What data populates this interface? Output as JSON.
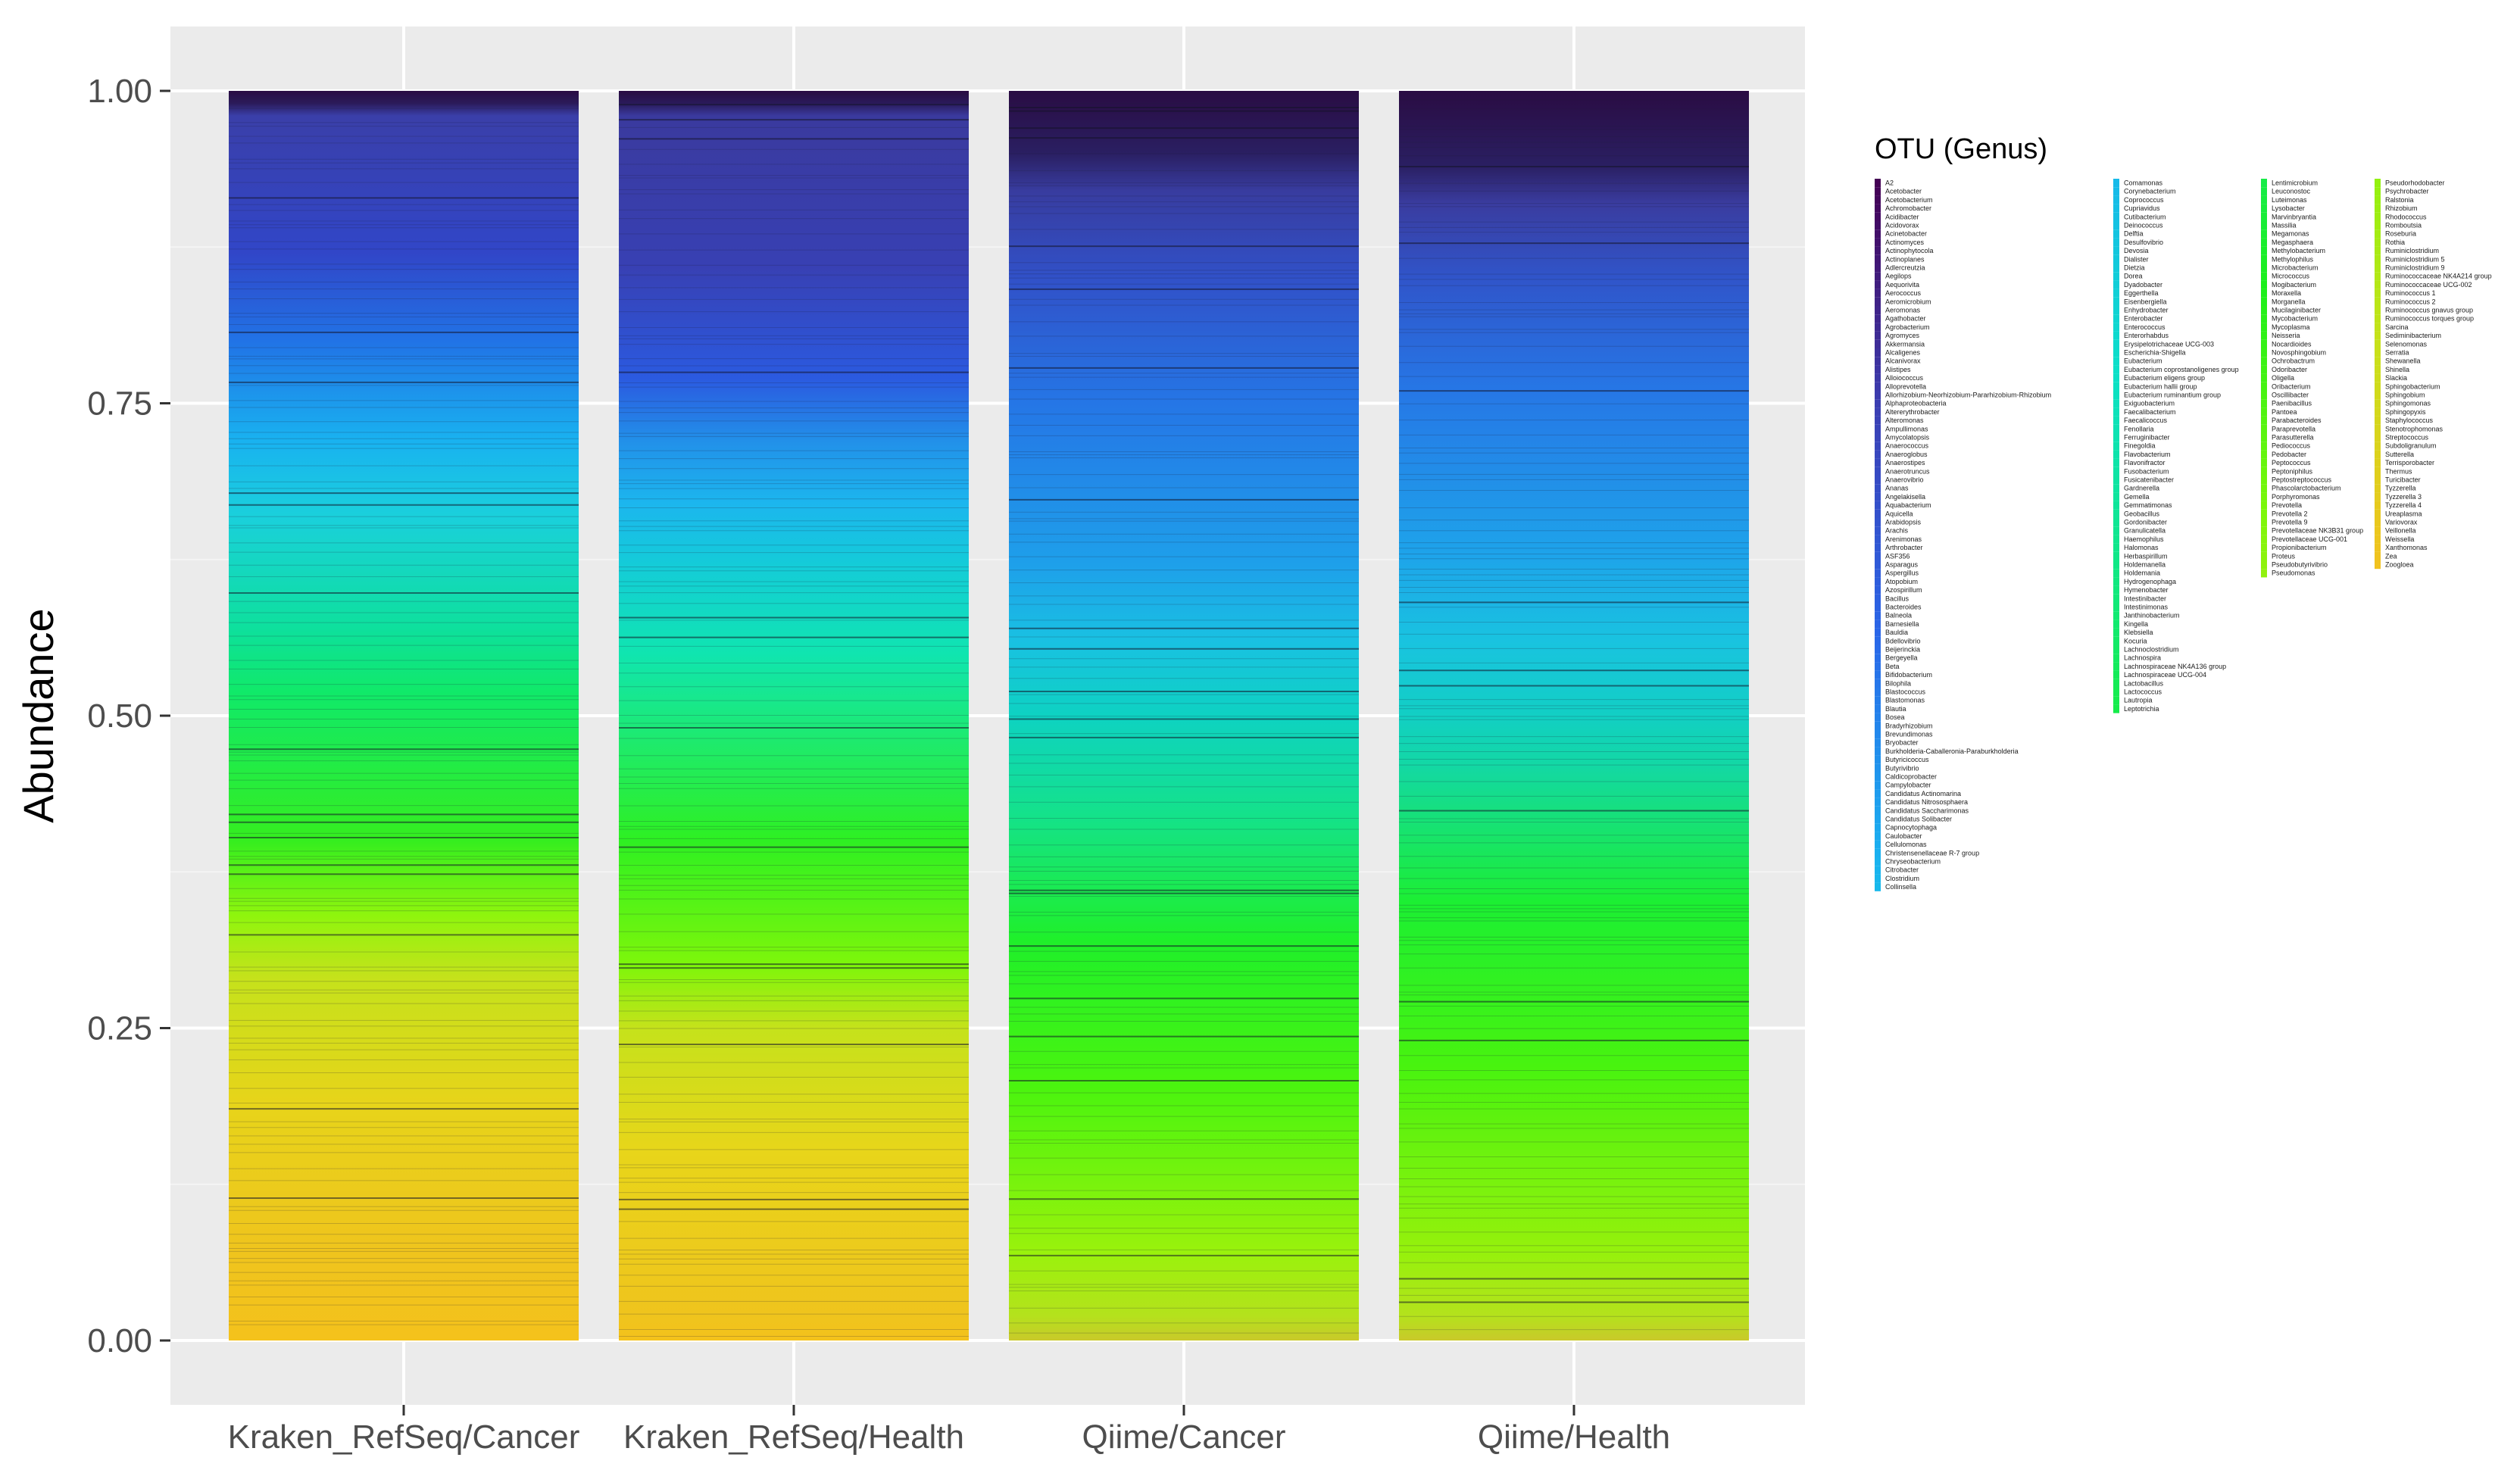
{
  "chart_data": {
    "type": "bar",
    "stacked": true,
    "normalized": true,
    "ylabel": "Abundance",
    "xlabel": "",
    "ylim": [
      0,
      1
    ],
    "yticks": [
      "0.00",
      "0.25",
      "0.50",
      "0.75",
      "1.00"
    ],
    "ytick_values": [
      0,
      0.25,
      0.5,
      0.75,
      1.0
    ],
    "categories": [
      "Kraken_RefSeq/Cancer",
      "Kraken_RefSeq/Health",
      "Qiime/Cancer",
      "Qiime/Health"
    ],
    "legend_title": "OTU (Genus)",
    "legend_position": "right",
    "grid": true,
    "panel_background": "#ebebeb",
    "colormap": [
      "#440154",
      "#3b3fb3",
      "#2a66e8",
      "#19b2f0",
      "#0ce0c8",
      "#10e97a",
      "#1bef1a",
      "#7df70a",
      "#c6e21b",
      "#f1c21f"
    ],
    "color_bands": [
      {
        "category": "Kraken_RefSeq/Cancer",
        "stops": [
          [
            0.0,
            "#f4c21c"
          ],
          [
            0.07,
            "#efc41d"
          ],
          [
            0.19,
            "#e7d41a"
          ],
          [
            0.29,
            "#c5e21b"
          ],
          [
            0.34,
            "#8ff50d"
          ],
          [
            0.4,
            "#35ee1f"
          ],
          [
            0.52,
            "#10e96a"
          ],
          [
            0.57,
            "#0ee09d"
          ],
          [
            0.66,
            "#1ad0dc"
          ],
          [
            0.72,
            "#19b2f0"
          ],
          [
            0.8,
            "#2173e6"
          ],
          [
            0.87,
            "#3146c8"
          ],
          [
            0.98,
            "#3a3fa9"
          ],
          [
            0.99,
            "#2b1b5a"
          ],
          [
            1.0,
            "#2a0c43"
          ]
        ]
      },
      {
        "category": "Kraken_RefSeq/Health",
        "stops": [
          [
            0.0,
            "#f4c21c"
          ],
          [
            0.02,
            "#efc41d"
          ],
          [
            0.15,
            "#e8d51a"
          ],
          [
            0.25,
            "#c5e21b"
          ],
          [
            0.3,
            "#7ef60a"
          ],
          [
            0.4,
            "#2ef022"
          ],
          [
            0.55,
            "#10e5b0"
          ],
          [
            0.62,
            "#14ccd8"
          ],
          [
            0.67,
            "#1cb6ee"
          ],
          [
            0.72,
            "#2290e9"
          ],
          [
            0.77,
            "#2b5ae0"
          ],
          [
            0.86,
            "#3840b3"
          ],
          [
            0.98,
            "#3a3a9e"
          ],
          [
            0.99,
            "#2a1a5a"
          ],
          [
            1.0,
            "#2a0c43"
          ]
        ]
      },
      {
        "category": "Qiime/Cancer",
        "stops": [
          [
            0.0,
            "#c9c92a"
          ],
          [
            0.02,
            "#b4e21c"
          ],
          [
            0.07,
            "#9af20c"
          ],
          [
            0.2,
            "#4cf40e"
          ],
          [
            0.32,
            "#1ff02a"
          ],
          [
            0.42,
            "#14e28a"
          ],
          [
            0.5,
            "#0ed2c2"
          ],
          [
            0.56,
            "#19c1e2"
          ],
          [
            0.62,
            "#1ea0ea"
          ],
          [
            0.75,
            "#2576e6"
          ],
          [
            0.85,
            "#3151c8"
          ],
          [
            0.92,
            "#383c9f"
          ],
          [
            0.95,
            "#2a1f62"
          ],
          [
            1.0,
            "#2a0c43"
          ]
        ]
      },
      {
        "category": "Qiime/Health",
        "stops": [
          [
            0.0,
            "#c9c92a"
          ],
          [
            0.02,
            "#b4e21c"
          ],
          [
            0.07,
            "#96f10c"
          ],
          [
            0.22,
            "#48f30f"
          ],
          [
            0.35,
            "#1cef32"
          ],
          [
            0.46,
            "#13d8a4"
          ],
          [
            0.5,
            "#12cfc4"
          ],
          [
            0.56,
            "#19c3e0"
          ],
          [
            0.63,
            "#1ea3ea"
          ],
          [
            0.76,
            "#2677e6"
          ],
          [
            0.85,
            "#3055ca"
          ],
          [
            0.91,
            "#3a3c9f"
          ],
          [
            0.94,
            "#2a1f62"
          ],
          [
            1.0,
            "#2a0c43"
          ]
        ]
      }
    ],
    "legend_columns": [
      [
        "A2",
        "Acetobacter",
        "Acetobacterium",
        "Achromobacter",
        "Acidibacter",
        "Acidovorax",
        "Acinetobacter",
        "Actinomyces",
        "Actinophytocola",
        "Actinoplanes",
        "Adlercreutzia",
        "Aegilops",
        "Aequorivita",
        "Aerococcus",
        "Aeromicrobium",
        "Aeromonas",
        "Agathobacter",
        "Agrobacterium",
        "Agromyces",
        "Akkermansia",
        "Alcaligenes",
        "Alcanivorax",
        "Alistipes",
        "Alloiococcus",
        "Alloprevotella",
        "Allorhizobium-Neorhizobium-Pararhizobium-Rhizobium",
        "Alphaproteobacteria",
        "Altererythrobacter",
        "Alteromonas",
        "Ampullimonas",
        "Amycolatopsis",
        "Anaerococcus",
        "Anaeroglobus",
        "Anaerostipes",
        "Anaerotruncus",
        "Anaerovibrio",
        "Ananas",
        "Angelakisella",
        "Aquabacterium",
        "Aquicella",
        "Arabidopsis",
        "Arachis",
        "Arenimonas",
        "Arthrobacter",
        "ASF356",
        "Asparagus",
        "Aspergillus",
        "Atopobium",
        "Azospirillum",
        "Bacillus",
        "Bacteroides",
        "Balneola",
        "Barnesiella",
        "Bauldia",
        "Bdellovibrio",
        "Beijerinckia",
        "Bergeyella",
        "Beta",
        "Bifidobacterium",
        "Bilophila",
        "Blastococcus",
        "Blastomonas",
        "Blautia",
        "Bosea",
        "Bradyrhizobium",
        "Brevundimonas",
        "Bryobacter",
        "Burkholderia-Caballeronia-Paraburkholderia",
        "Butyricicoccus",
        "Butyrivibrio",
        "Caldicoprobacter",
        "Campylobacter",
        "Candidatus Actinomarina",
        "Candidatus Nitrososphaera",
        "Candidatus Saccharimonas",
        "Candidatus Solibacter",
        "Capnocytophaga",
        "Caulobacter",
        "Cellulomonas",
        "Christensenellaceae R-7 group",
        "Chryseobacterium",
        "Citrobacter",
        "Clostridium",
        "Collinsella"
      ],
      [
        "Comamonas",
        "Corynebacterium",
        "Coprococcus",
        "Cupriavidus",
        "Cutibacterium",
        "Deinococcus",
        "Delftia",
        "Desulfovibrio",
        "Devosia",
        "Dialister",
        "Dietzia",
        "Dorea",
        "Dyadobacter",
        "Eggerthella",
        "Eisenbergiella",
        "Enhydrobacter",
        "Enterobacter",
        "Enterococcus",
        "Enterorhabdus",
        "Erysipelotrichaceae UCG-003",
        "Escherichia-Shigella",
        "Eubacterium",
        "Eubacterium coprostanoligenes group",
        "Eubacterium eligens group",
        "Eubacterium hallii group",
        "Eubacterium ruminantium group",
        "Exiguobacterium",
        "Faecalibacterium",
        "Faecalicoccus",
        "Fenollaria",
        "Ferruginibacter",
        "Finegoldia",
        "Flavobacterium",
        "Flavonifractor",
        "Fusobacterium",
        "Fusicatenibacter",
        "Gardnerella",
        "Gemella",
        "Gemmatimonas",
        "Geobacillus",
        "Gordonibacter",
        "Granulicatella",
        "Haemophilus",
        "Halomonas",
        "Herbaspirillum",
        "Holdemanella",
        "Holdemania",
        "Hydrogenophaga",
        "Hymenobacter",
        "Intestinibacter",
        "Intestinimonas",
        "Janthinobacterium",
        "Kingella",
        "Klebsiella",
        "Kocuria",
        "Lachnoclostridium",
        "Lachnospira",
        "Lachnospiraceae NK4A136 group",
        "Lachnospiraceae UCG-004",
        "Lactobacillus",
        "Lactococcus",
        "Lautropia",
        "Leptotrichia"
      ],
      [
        "Lentimicrobium",
        "Leuconostoc",
        "Luteimonas",
        "Lysobacter",
        "Marvinbryantia",
        "Massilia",
        "Megamonas",
        "Megasphaera",
        "Methylobacterium",
        "Methylophilus",
        "Microbacterium",
        "Micrococcus",
        "Mogibacterium",
        "Moraxella",
        "Morganella",
        "Mucilaginibacter",
        "Mycobacterium",
        "Mycoplasma",
        "Neisseria",
        "Nocardioides",
        "Novosphingobium",
        "Ochrobactrum",
        "Odoribacter",
        "Oligella",
        "Oribacterium",
        "Oscillibacter",
        "Paenibacillus",
        "Pantoea",
        "Parabacteroides",
        "Paraprevotella",
        "Parasutterella",
        "Pediococcus",
        "Pedobacter",
        "Peptococcus",
        "Peptoniphilus",
        "Peptostreptococcus",
        "Phascolarctobacterium",
        "Porphyromonas",
        "Prevotella",
        "Prevotella 2",
        "Prevotella 9",
        "Prevotellaceae NK3B31 group",
        "Prevotellaceae UCG-001",
        "Propionibacterium",
        "Proteus",
        "Pseudobutyrivibrio",
        "Pseudomonas"
      ],
      [
        "Pseudorhodobacter",
        "Psychrobacter",
        "Ralstonia",
        "Rhizobium",
        "Rhodococcus",
        "Romboutsia",
        "Roseburia",
        "Rothia",
        "Ruminiclostridium",
        "Ruminiclostridium 5",
        "Ruminiclostridium 9",
        "Ruminococcaceae NK4A214 group",
        "Ruminococcaceae UCG-002",
        "Ruminococcus 1",
        "Ruminococcus 2",
        "Ruminococcus gnavus group",
        "Ruminococcus torques group",
        "Sarcina",
        "Sediminibacterium",
        "Selenomonas",
        "Serratia",
        "Shewanella",
        "Shinella",
        "Slackia",
        "Sphingobacterium",
        "Sphingobium",
        "Sphingomonas",
        "Sphingopyxis",
        "Staphylococcus",
        "Stenotrophomonas",
        "Streptococcus",
        "Subdoligranulum",
        "Sutterella",
        "Terrisporobacter",
        "Thermus",
        "Turicibacter",
        "Tyzzerella",
        "Tyzzerella 3",
        "Tyzzerella 4",
        "Ureaplasma",
        "Variovorax",
        "Veillonella",
        "Weissella",
        "Xanthomonas",
        "Zea",
        "Zoogloea"
      ]
    ]
  }
}
